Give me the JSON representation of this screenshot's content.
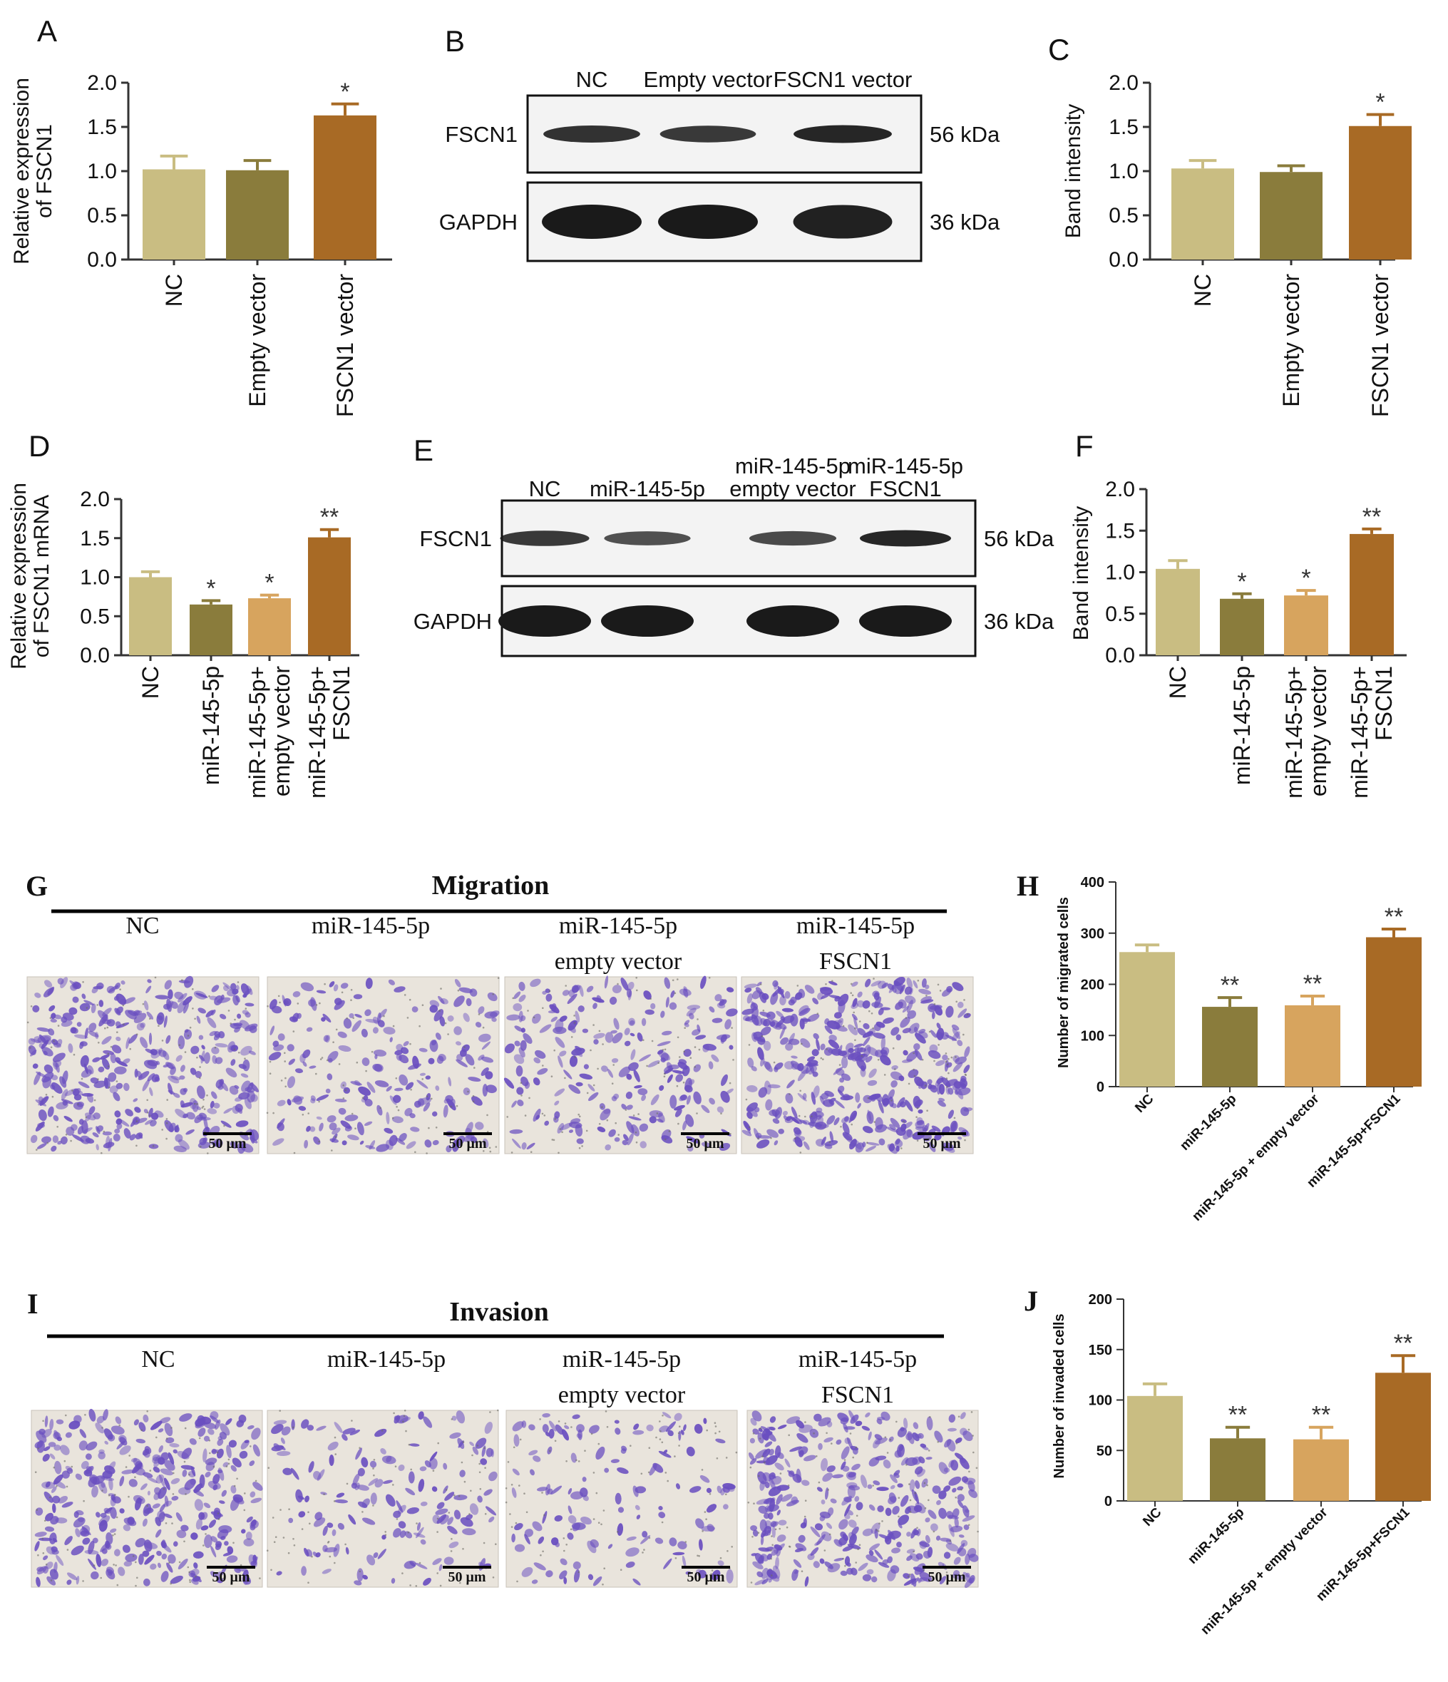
{
  "colors": {
    "nc": "#c9bd82",
    "group2": "#8a7c3c",
    "group3": "#d7a45e",
    "group4": "#a86a25",
    "stain": "#6a4fc0",
    "band": "#1a1a1a"
  },
  "panels": {
    "A": "A",
    "B": "B",
    "C": "C",
    "D": "D",
    "E": "E",
    "F": "F",
    "G": "G",
    "H": "H",
    "I": "I",
    "J": "J"
  },
  "chart_data": [
    {
      "panel": "A",
      "type": "bar",
      "categories": [
        "NC",
        "Empty vector",
        "FSCN1 vector"
      ],
      "values": [
        1.02,
        1.01,
        1.63
      ],
      "errors": [
        0.15,
        0.11,
        0.13
      ],
      "significance": [
        "",
        "",
        "*"
      ],
      "ylabel_lines": [
        "Relative expression",
        "of FSCN1"
      ],
      "ylim": [
        0,
        2.0
      ],
      "yticks": [
        "0.0",
        "0.5",
        "1.0",
        "1.5",
        "2.0"
      ],
      "ytick_values": [
        0,
        0.5,
        1.0,
        1.5,
        2.0
      ]
    },
    {
      "panel": "C",
      "type": "bar",
      "categories": [
        "NC",
        "Empty vector",
        "FSCN1 vector"
      ],
      "values": [
        1.03,
        0.99,
        1.51
      ],
      "errors": [
        0.09,
        0.07,
        0.13
      ],
      "significance": [
        "",
        "",
        "*"
      ],
      "ylabel_lines": [
        "Band intensity"
      ],
      "ylim": [
        0,
        2.0
      ],
      "yticks": [
        "0.0",
        "0.5",
        "1.0",
        "1.5",
        "2.0"
      ],
      "ytick_values": [
        0,
        0.5,
        1.0,
        1.5,
        2.0
      ]
    },
    {
      "panel": "D",
      "type": "bar",
      "categories": [
        "NC",
        "miR-145-5p",
        "miR-145-5p+\nempty vector",
        "miR-145-5p+\nFSCN1"
      ],
      "values": [
        1.0,
        0.65,
        0.73,
        1.51
      ],
      "errors": [
        0.07,
        0.05,
        0.04,
        0.1
      ],
      "significance": [
        "",
        "*",
        "*",
        "**"
      ],
      "ylabel_lines": [
        "Relative expression",
        "of FSCN1 mRNA"
      ],
      "ylim": [
        0,
        2.0
      ],
      "yticks": [
        "0.0",
        "0.5",
        "1.0",
        "1.5",
        "2.0"
      ],
      "ytick_values": [
        0,
        0.5,
        1.0,
        1.5,
        2.0
      ]
    },
    {
      "panel": "F",
      "type": "bar",
      "categories": [
        "NC",
        "miR-145-5p",
        "miR-145-5p+\nempty vector",
        "miR-145-5p+\nFSCN1"
      ],
      "values": [
        1.04,
        0.68,
        0.72,
        1.46
      ],
      "errors": [
        0.1,
        0.06,
        0.06,
        0.06
      ],
      "significance": [
        "",
        "*",
        "*",
        "**"
      ],
      "ylabel_lines": [
        "Band intensity"
      ],
      "ylim": [
        0,
        2.0
      ],
      "yticks": [
        "0.0",
        "0.5",
        "1.0",
        "1.5",
        "2.0"
      ],
      "ytick_values": [
        0,
        0.5,
        1.0,
        1.5,
        2.0
      ]
    },
    {
      "panel": "H",
      "type": "bar",
      "categories": [
        "NC",
        "miR-145-5p",
        "miR-145-5p + empty vector",
        "miR-145-5p+FSCN1"
      ],
      "values": [
        263,
        156,
        159,
        292
      ],
      "errors": [
        14,
        18,
        18,
        16
      ],
      "significance": [
        "",
        "**",
        "**",
        "**"
      ],
      "ylabel_lines": [
        "Number of migrated cells"
      ],
      "ylim": [
        0,
        400
      ],
      "yticks": [
        "0",
        "100",
        "200",
        "300",
        "400"
      ],
      "ytick_values": [
        0,
        100,
        200,
        300,
        400
      ]
    },
    {
      "panel": "J",
      "type": "bar",
      "categories": [
        "NC",
        "miR-145-5p",
        "miR-145-5p + empty vector",
        "miR-145-5p+FSCN1"
      ],
      "values": [
        104,
        62,
        61,
        127
      ],
      "errors": [
        12,
        11,
        12,
        17
      ],
      "significance": [
        "",
        "**",
        "**",
        "**"
      ],
      "ylabel_lines": [
        "Number of invaded cells"
      ],
      "ylim": [
        0,
        200
      ],
      "yticks": [
        "0",
        "50",
        "100",
        "150",
        "200"
      ],
      "ytick_values": [
        0,
        50,
        100,
        150,
        200
      ]
    }
  ],
  "blot_B": {
    "lanes": [
      "NC",
      "Empty vector",
      "FSCN1 vector"
    ],
    "rows": [
      {
        "protein": "FSCN1",
        "size": "56 kDa",
        "intensity": [
          0.8,
          0.75,
          0.9
        ]
      },
      {
        "protein": "GAPDH",
        "size": "36 kDa",
        "intensity": [
          1.0,
          1.0,
          0.95
        ]
      }
    ]
  },
  "blot_E": {
    "lane_lines": [
      [
        "NC"
      ],
      [
        "miR-145-5p"
      ],
      [
        "miR-145-5p",
        "empty vector"
      ],
      [
        "miR-145-5p",
        "FSCN1"
      ]
    ],
    "rows": [
      {
        "protein": "FSCN1",
        "size": "56 kDa",
        "intensity": [
          0.75,
          0.55,
          0.6,
          0.9
        ]
      },
      {
        "protein": "GAPDH",
        "size": "36 kDa",
        "intensity": [
          1.0,
          1.0,
          1.0,
          1.0
        ]
      }
    ]
  },
  "migration": {
    "title": "Migration",
    "column_lines": [
      [
        "NC"
      ],
      [
        "miR-145-5p"
      ],
      [
        "miR-145-5p",
        "empty vector"
      ],
      [
        "miR-145-5p",
        "FSCN1"
      ]
    ],
    "density": [
      1.0,
      0.55,
      0.6,
      1.1
    ],
    "scale_bar": "50 μm"
  },
  "invasion": {
    "title": "Invasion",
    "column_lines": [
      [
        "NC"
      ],
      [
        "miR-145-5p"
      ],
      [
        "miR-145-5p",
        "empty vector"
      ],
      [
        "miR-145-5p",
        "FSCN1"
      ]
    ],
    "density": [
      0.9,
      0.4,
      0.35,
      0.95
    ],
    "scale_bar": "50 μm"
  }
}
